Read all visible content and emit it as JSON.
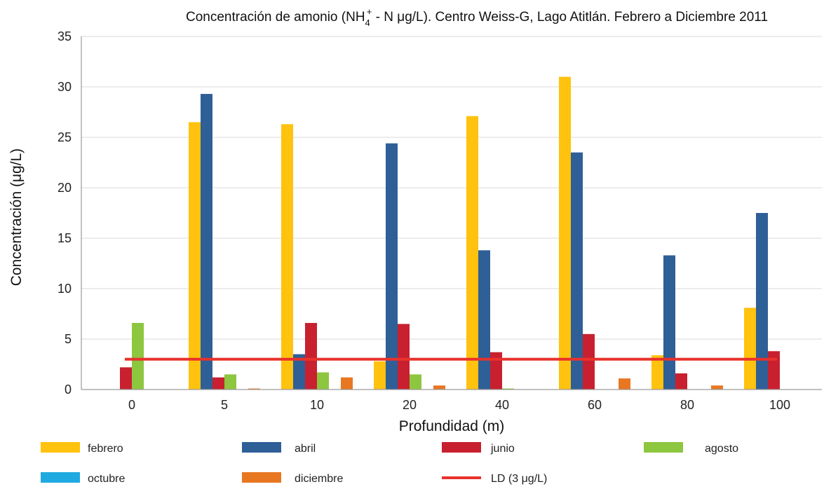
{
  "chart_data": {
    "type": "bar",
    "title": {
      "prefix": "Concentración de amonio (NH",
      "subscript": "4",
      "superscript": "+",
      "suffix": " - N μg/L).  Centro Weiss-G, Lago Atitlán.  Febrero a Diciembre 2011"
    },
    "xlabel": "Profundidad (m)",
    "ylabel": "Concentración (μg/L)",
    "categories": [
      "0",
      "5",
      "10",
      "20",
      "40",
      "60",
      "80",
      "100"
    ],
    "ylim": [
      0,
      35
    ],
    "yticks": [
      "0",
      "5",
      "10",
      "15",
      "20",
      "25",
      "30",
      "35"
    ],
    "grid": "horizontal",
    "legend_position": "bottom",
    "series": [
      {
        "name": "febrero",
        "color": "#FFC20E",
        "values": [
          0,
          26.5,
          26.3,
          2.8,
          27.1,
          31.0,
          3.4,
          8.1
        ]
      },
      {
        "name": "abril",
        "color": "#2E5F97",
        "values": [
          0,
          29.3,
          3.5,
          24.4,
          13.8,
          23.5,
          13.3,
          17.5
        ]
      },
      {
        "name": "junio",
        "color": "#C8202F",
        "values": [
          2.2,
          1.2,
          6.6,
          6.5,
          3.7,
          5.5,
          1.6,
          3.8
        ]
      },
      {
        "name": "agosto",
        "color": "#8DC63F",
        "values": [
          6.6,
          1.5,
          1.7,
          1.5,
          0.1,
          0,
          0,
          0
        ]
      },
      {
        "name": "octubre",
        "color": "#1FA9E1",
        "values": [
          0,
          0,
          0,
          0,
          0,
          0,
          0,
          0
        ]
      },
      {
        "name": "diciembre",
        "color": "#E87722",
        "values": [
          0,
          0.1,
          1.2,
          0.4,
          0,
          1.1,
          0.4,
          0
        ]
      }
    ],
    "reference_line": {
      "name": "LD (3 μg/L)",
      "value": 3,
      "color": "#E8322C"
    }
  }
}
